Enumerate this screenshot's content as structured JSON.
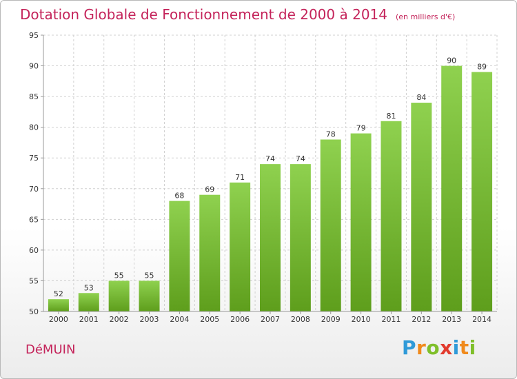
{
  "header": {
    "title": "Dotation Globale de Fonctionnement de 2000 à 2014",
    "unit": "(en milliers d'€)"
  },
  "footer": {
    "commune": "DéMUIN",
    "logo_text": "Proxiti",
    "logo_icon": "proxiti-logo"
  },
  "colors": {
    "title": "#c4235a",
    "bar_light": "#8fd14f",
    "bar_dark": "#5e9e1c",
    "grid": "#d0d0d0",
    "axis": "#999999"
  },
  "chart_data": {
    "type": "bar",
    "title": "Dotation Globale de Fonctionnement de 2000 à 2014",
    "subtitle": "(en milliers d'€)",
    "xlabel": "",
    "ylabel": "",
    "categories": [
      "2000",
      "2001",
      "2002",
      "2003",
      "2004",
      "2005",
      "2006",
      "2007",
      "2008",
      "2009",
      "2010",
      "2011",
      "2012",
      "2013",
      "2014"
    ],
    "values": [
      52,
      53,
      55,
      55,
      68,
      69,
      71,
      74,
      74,
      78,
      79,
      81,
      84,
      90,
      89
    ],
    "ylim": [
      50,
      95
    ],
    "yticks": [
      50,
      55,
      60,
      65,
      70,
      75,
      80,
      85,
      90,
      95
    ],
    "grid": true,
    "legend": "none"
  }
}
